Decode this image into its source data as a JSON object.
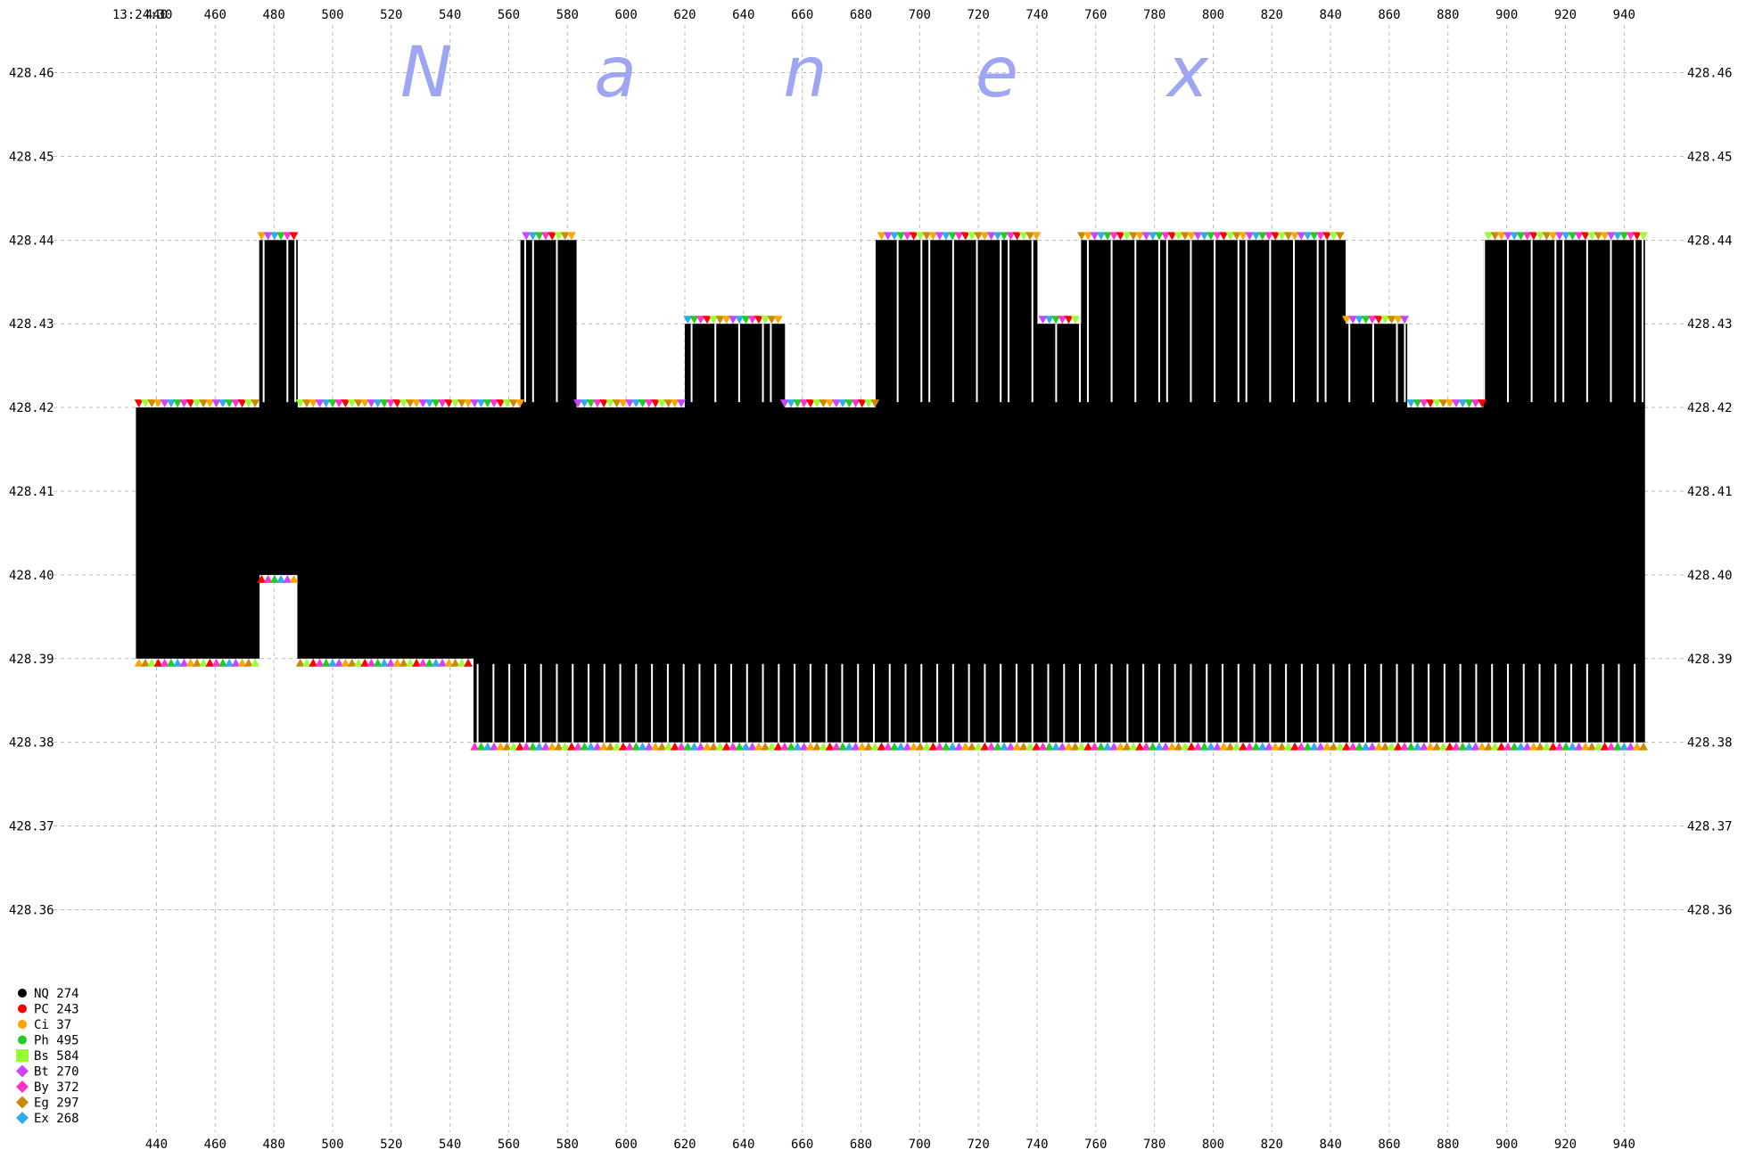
{
  "chart_data": {
    "type": "scatter",
    "title": "",
    "timestamp": "13:24:30",
    "watermark": [
      "N",
      "a",
      "n",
      "e",
      "x"
    ],
    "x_ticks": [
      440,
      460,
      480,
      500,
      520,
      540,
      560,
      580,
      600,
      620,
      640,
      660,
      680,
      700,
      720,
      740,
      760,
      780,
      800,
      820,
      840,
      860,
      880,
      900,
      920,
      940
    ],
    "xlim": [
      419.5,
      947.5
    ],
    "y_ticks": [
      "428.46",
      "428.45",
      "428.44",
      "428.43",
      "428.42",
      "428.41",
      "428.40",
      "428.39",
      "428.38",
      "428.37",
      "428.36"
    ],
    "ylim": [
      428.356,
      428.464
    ],
    "grid": true,
    "bid": [
      {
        "x": [
          433,
          475
        ],
        "y": 428.39
      },
      {
        "x": [
          475,
          488
        ],
        "y": 428.4
      },
      {
        "x": [
          488,
          548
        ],
        "y": 428.39
      },
      {
        "x": [
          548,
          947
        ],
        "y": 428.38
      }
    ],
    "ask": [
      {
        "x": [
          433,
          475
        ],
        "y": 428.42
      },
      {
        "x": [
          475,
          488
        ],
        "y": 428.44
      },
      {
        "x": [
          488,
          564
        ],
        "y": 428.42
      },
      {
        "x": [
          564,
          583
        ],
        "y": 428.44
      },
      {
        "x": [
          583,
          620
        ],
        "y": 428.42
      },
      {
        "x": [
          620,
          636
        ],
        "y": 428.43
      },
      {
        "x": [
          636,
          654
        ],
        "y": 428.43
      },
      {
        "x": [
          654,
          685
        ],
        "y": 428.42
      },
      {
        "x": [
          685,
          740
        ],
        "y": 428.44
      },
      {
        "x": [
          740,
          755
        ],
        "y": 428.43
      },
      {
        "x": [
          755,
          845
        ],
        "y": 428.44
      },
      {
        "x": [
          845,
          866
        ],
        "y": 428.43
      },
      {
        "x": [
          866,
          892
        ],
        "y": 428.42
      },
      {
        "x": [
          892,
          947
        ],
        "y": 428.44
      }
    ],
    "series": [
      {
        "name": "NQ",
        "count": "274",
        "color": "#000000",
        "marker": "circle"
      },
      {
        "name": "PC",
        "count": "243",
        "color": "#ff0000",
        "marker": "circle"
      },
      {
        "name": "Ci",
        "count": " 37",
        "color": "#ffa500",
        "marker": "circle"
      },
      {
        "name": "Ph",
        "count": "495",
        "color": "#22cc22",
        "marker": "circle"
      },
      {
        "name": "Bs",
        "count": "584",
        "color": "#99ff33",
        "marker": "square"
      },
      {
        "name": "Bt",
        "count": "270",
        "color": "#cc44ff",
        "marker": "diamond"
      },
      {
        "name": "By",
        "count": "372",
        "color": "#ff33cc",
        "marker": "diamond"
      },
      {
        "name": "Eg",
        "count": "297",
        "color": "#cc8800",
        "marker": "diamond"
      },
      {
        "name": "Ex",
        "count": "268",
        "color": "#33aaee",
        "marker": "diamond"
      }
    ],
    "legend_position": "bottom-left"
  }
}
